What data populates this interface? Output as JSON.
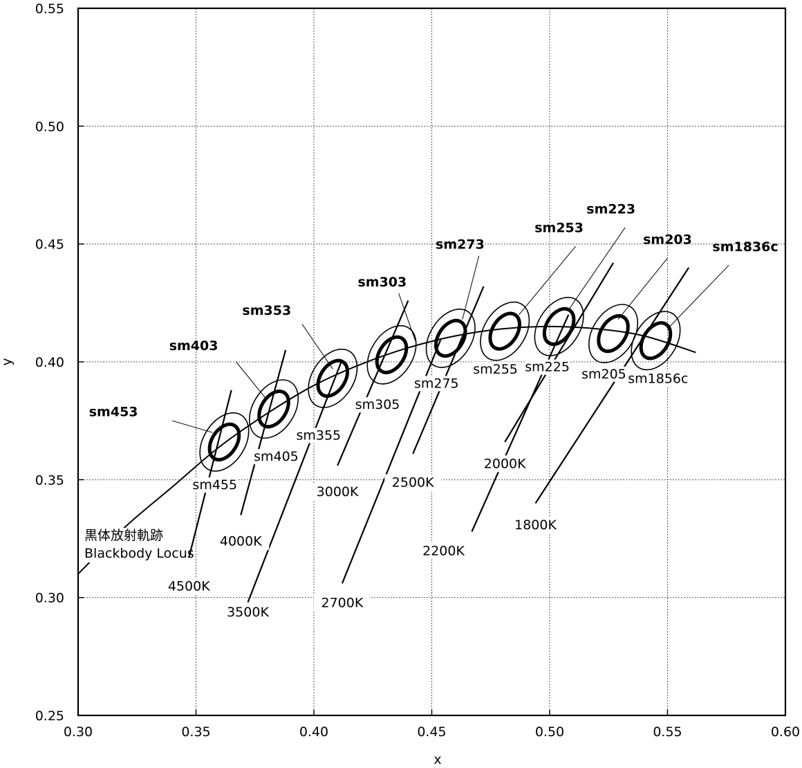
{
  "chart_data": {
    "type": "scatter",
    "title": "",
    "xlabel": "x",
    "ylabel": "y",
    "xlim": [
      0.3,
      0.6
    ],
    "ylim": [
      0.25,
      0.55
    ],
    "grid": true,
    "x_ticks": [
      "0.30",
      "0.35",
      "0.40",
      "0.45",
      "0.50",
      "0.55",
      "0.60"
    ],
    "y_ticks": [
      "0.25",
      "0.30",
      "0.35",
      "0.40",
      "0.45",
      "0.50",
      "0.55"
    ],
    "locus_label": [
      "黒体放射軌跡",
      "Blackbody Locus"
    ],
    "blackbody_locus": [
      [
        0.3,
        0.31
      ],
      [
        0.32,
        0.33
      ],
      [
        0.34,
        0.347
      ],
      [
        0.36,
        0.364
      ],
      [
        0.38,
        0.378
      ],
      [
        0.4,
        0.39
      ],
      [
        0.42,
        0.399
      ],
      [
        0.44,
        0.406
      ],
      [
        0.46,
        0.411
      ],
      [
        0.48,
        0.414
      ],
      [
        0.5,
        0.415
      ],
      [
        0.52,
        0.414
      ],
      [
        0.54,
        0.411
      ],
      [
        0.562,
        0.404
      ]
    ],
    "isotherms": [
      {
        "cct": "4500K",
        "from": [
          0.347,
          0.317
        ],
        "to": [
          0.365,
          0.388
        ],
        "label_at": [
          0.347,
          0.303
        ]
      },
      {
        "cct": "4000K",
        "from": [
          0.369,
          0.335
        ],
        "to": [
          0.388,
          0.405
        ],
        "label_at": [
          0.369,
          0.322
        ]
      },
      {
        "cct": "3500K",
        "from": [
          0.372,
          0.298
        ],
        "to": [
          0.412,
          0.401
        ],
        "label_at": [
          0.372,
          0.292
        ]
      },
      {
        "cct": "3000K",
        "from": [
          0.41,
          0.356
        ],
        "to": [
          0.44,
          0.426
        ],
        "label_at": [
          0.41,
          0.343
        ]
      },
      {
        "cct": "2700K",
        "from": [
          0.412,
          0.306
        ],
        "to": [
          0.454,
          0.41
        ],
        "label_at": [
          0.412,
          0.296
        ]
      },
      {
        "cct": "2500K",
        "from": [
          0.442,
          0.361
        ],
        "to": [
          0.472,
          0.432
        ],
        "label_at": [
          0.442,
          0.347
        ]
      },
      {
        "cct": "2200K",
        "from": [
          0.467,
          0.328
        ],
        "to": [
          0.508,
          0.42
        ],
        "label_at": [
          0.455,
          0.318
        ]
      },
      {
        "cct": "2000K",
        "from": [
          0.481,
          0.366
        ],
        "to": [
          0.527,
          0.442
        ],
        "label_at": [
          0.481,
          0.355
        ]
      },
      {
        "cct": "1800K",
        "from": [
          0.494,
          0.34
        ],
        "to": [
          0.559,
          0.44
        ],
        "label_at": [
          0.494,
          0.329
        ]
      }
    ],
    "ellipses": [
      {
        "name": "sm453",
        "center": [
          0.362,
          0.366
        ],
        "bold": true
      },
      {
        "name": "sm455",
        "center": [
          0.362,
          0.366
        ],
        "bold": false
      },
      {
        "name": "sm403",
        "center": [
          0.383,
          0.38
        ],
        "bold": true
      },
      {
        "name": "sm405",
        "center": [
          0.383,
          0.38
        ],
        "bold": false
      },
      {
        "name": "sm353",
        "center": [
          0.408,
          0.393
        ],
        "bold": true
      },
      {
        "name": "sm355",
        "center": [
          0.408,
          0.393
        ],
        "bold": false
      },
      {
        "name": "sm303",
        "center": [
          0.433,
          0.403
        ],
        "bold": true
      },
      {
        "name": "sm305",
        "center": [
          0.433,
          0.403
        ],
        "bold": false
      },
      {
        "name": "sm273",
        "center": [
          0.458,
          0.41
        ],
        "bold": true
      },
      {
        "name": "sm275",
        "center": [
          0.458,
          0.41
        ],
        "bold": false
      },
      {
        "name": "sm253",
        "center": [
          0.481,
          0.413
        ],
        "bold": true
      },
      {
        "name": "sm255",
        "center": [
          0.481,
          0.413
        ],
        "bold": false
      },
      {
        "name": "sm223",
        "center": [
          0.504,
          0.415
        ],
        "bold": true
      },
      {
        "name": "sm225",
        "center": [
          0.504,
          0.415
        ],
        "bold": false
      },
      {
        "name": "sm203",
        "center": [
          0.527,
          0.412
        ],
        "bold": true
      },
      {
        "name": "sm205",
        "center": [
          0.527,
          0.412
        ],
        "bold": false
      },
      {
        "name": "sm1836c",
        "center": [
          0.545,
          0.409
        ],
        "bold": true
      },
      {
        "name": "sm1856c",
        "center": [
          0.545,
          0.409
        ],
        "bold": false
      }
    ],
    "ellipse_labels": [
      {
        "text": "sm453",
        "bold": true,
        "at": [
          0.315,
          0.377
        ],
        "leader": [
          [
            0.34,
            0.375
          ],
          [
            0.357,
            0.37
          ]
        ]
      },
      {
        "text": "sm403",
        "bold": true,
        "at": [
          0.349,
          0.405
        ],
        "leader": [
          [
            0.367,
            0.4
          ],
          [
            0.38,
            0.384
          ]
        ]
      },
      {
        "text": "sm353",
        "bold": true,
        "at": [
          0.38,
          0.42
        ],
        "leader": [
          [
            0.395,
            0.416
          ],
          [
            0.408,
            0.397
          ]
        ]
      },
      {
        "text": "sm303",
        "bold": true,
        "at": [
          0.429,
          0.432
        ],
        "leader": [
          [
            0.436,
            0.429
          ],
          [
            0.443,
            0.409
          ]
        ]
      },
      {
        "text": "sm273",
        "bold": true,
        "at": [
          0.462,
          0.448
        ],
        "leader": [
          [
            0.47,
            0.445
          ],
          [
            0.463,
            0.418
          ]
        ]
      },
      {
        "text": "sm253",
        "bold": true,
        "at": [
          0.504,
          0.455
        ],
        "leader": [
          [
            0.511,
            0.449
          ],
          [
            0.487,
            0.42
          ]
        ]
      },
      {
        "text": "sm223",
        "bold": true,
        "at": [
          0.526,
          0.463
        ],
        "leader": [
          [
            0.532,
            0.457
          ],
          [
            0.508,
            0.422
          ]
        ]
      },
      {
        "text": "sm203",
        "bold": true,
        "at": [
          0.55,
          0.45
        ],
        "leader": [
          [
            0.55,
            0.444
          ],
          [
            0.529,
            0.418
          ]
        ]
      },
      {
        "text": "sm1836c",
        "bold": true,
        "at": [
          0.583,
          0.447
        ],
        "leader": [
          [
            0.576,
            0.441
          ],
          [
            0.55,
            0.414
          ]
        ]
      },
      {
        "text": "sm455",
        "bold": false,
        "at": [
          0.358,
          0.346
        ],
        "leader": null
      },
      {
        "text": "sm405",
        "bold": false,
        "at": [
          0.384,
          0.358
        ],
        "leader": null
      },
      {
        "text": "sm355",
        "bold": false,
        "at": [
          0.402,
          0.367
        ],
        "leader": null
      },
      {
        "text": "sm305",
        "bold": false,
        "at": [
          0.427,
          0.38
        ],
        "leader": null
      },
      {
        "text": "sm275",
        "bold": false,
        "at": [
          0.452,
          0.389
        ],
        "leader": null
      },
      {
        "text": "sm255",
        "bold": false,
        "at": [
          0.477,
          0.395
        ],
        "leader": null
      },
      {
        "text": "sm225",
        "bold": false,
        "at": [
          0.499,
          0.396
        ],
        "leader": null
      },
      {
        "text": "sm205",
        "bold": false,
        "at": [
          0.523,
          0.393
        ],
        "leader": null
      },
      {
        "text": "sm1856c",
        "bold": false,
        "at": [
          0.546,
          0.391
        ],
        "leader": null
      }
    ]
  }
}
